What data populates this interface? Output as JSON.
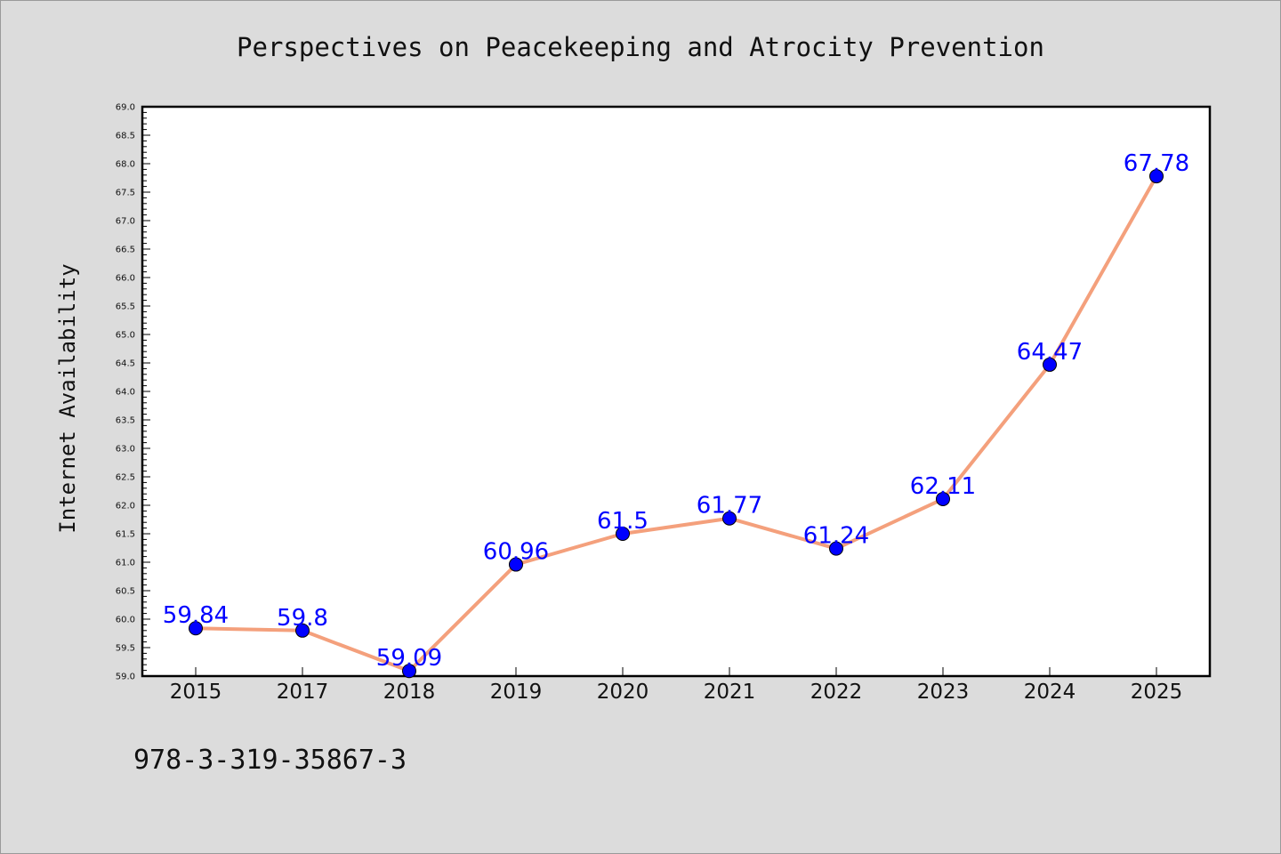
{
  "chart_data": {
    "type": "line",
    "title": "Perspectives on Peacekeeping and Atrocity Prevention",
    "xlabel": "",
    "ylabel": "Internet Availability",
    "categories": [
      "2015",
      "2017",
      "2018",
      "2019",
      "2020",
      "2021",
      "2022",
      "2023",
      "2024",
      "2025"
    ],
    "series": [
      {
        "values": [
          59.84,
          59.8,
          59.09,
          60.96,
          61.5,
          61.77,
          61.24,
          62.11,
          64.47,
          67.78
        ],
        "data_labels": [
          "59.84",
          "59.8",
          "59.09",
          "60.96",
          "61.5",
          "61.77",
          "61.24",
          "62.11",
          "64.47",
          "67.78"
        ],
        "line_color": "#f4a07c",
        "marker_color": "#0000ff"
      }
    ],
    "ylim": [
      59.0,
      69.0
    ],
    "y_ticks": [
      "59.0",
      "59.5",
      "60.0",
      "60.5",
      "61.0",
      "61.5",
      "62.0",
      "62.5",
      "63.0",
      "63.5",
      "64.0",
      "64.5",
      "65.0",
      "65.5",
      "66.0",
      "66.5",
      "67.0",
      "67.5",
      "68.0",
      "68.5",
      "69.0"
    ],
    "grid": false,
    "legend": "none"
  },
  "footer": {
    "identifier": "978-3-319-35867-3"
  },
  "colors": {
    "background": "#dcdcdc",
    "plot_background": "#ffffff",
    "line": "#f4a07c",
    "marker": "#0000ff",
    "label": "#0000ff"
  }
}
